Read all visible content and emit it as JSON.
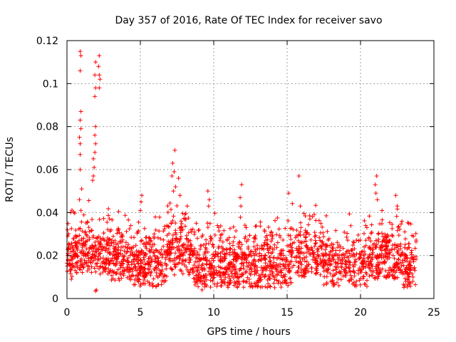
{
  "chart_data": {
    "type": "scatter",
    "title": "Day 357 of 2016, Rate Of TEC Index for receiver savo",
    "xlabel": "GPS time / hours",
    "ylabel": "ROTI / TECUs",
    "xlim": [
      0,
      25
    ],
    "ylim": [
      0,
      0.12
    ],
    "x_ticks": [
      0,
      5,
      10,
      15,
      20,
      25
    ],
    "x_tick_labels": [
      "0",
      "5",
      "10",
      "15",
      "20",
      "25"
    ],
    "y_ticks": [
      0,
      0.02,
      0.04,
      0.06,
      0.08,
      0.1,
      0.12
    ],
    "y_tick_labels": [
      "0",
      "0.02",
      "0.04",
      "0.06",
      "0.08",
      "0.1",
      "0.12"
    ],
    "grid": true,
    "marker": "+",
    "color": "#ff0000",
    "series": [
      {
        "name": "ROTI",
        "note": "dense point cloud; bulk of points 0.005-0.035 TECU/s across 0-24 h, representative peak points listed",
        "points": [
          [
            0.9,
            0.115
          ],
          [
            0.95,
            0.113
          ],
          [
            0.9,
            0.106
          ],
          [
            2.2,
            0.113
          ],
          [
            2.15,
            0.108
          ],
          [
            2.2,
            0.104
          ],
          [
            2.25,
            0.102
          ],
          [
            2.2,
            0.098
          ],
          [
            1.95,
            0.11
          ],
          [
            1.9,
            0.104
          ],
          [
            1.95,
            0.098
          ],
          [
            1.9,
            0.094
          ],
          [
            0.95,
            0.087
          ],
          [
            0.9,
            0.083
          ],
          [
            0.95,
            0.079
          ],
          [
            0.85,
            0.075
          ],
          [
            0.9,
            0.072
          ],
          [
            0.9,
            0.067
          ],
          [
            1.95,
            0.08
          ],
          [
            1.9,
            0.076
          ],
          [
            1.95,
            0.072
          ],
          [
            1.9,
            0.068
          ],
          [
            1.8,
            0.065
          ],
          [
            1.85,
            0.061
          ],
          [
            1.8,
            0.057
          ],
          [
            1.75,
            0.055
          ],
          [
            0.9,
            0.06
          ],
          [
            1.0,
            0.051
          ],
          [
            0.85,
            0.046
          ],
          [
            0.95,
            0.041
          ],
          [
            7.35,
            0.069
          ],
          [
            7.2,
            0.063
          ],
          [
            7.3,
            0.059
          ],
          [
            7.15,
            0.057
          ],
          [
            7.4,
            0.052
          ],
          [
            7.25,
            0.05
          ],
          [
            7.6,
            0.056
          ],
          [
            7.7,
            0.048
          ],
          [
            8.2,
            0.043
          ],
          [
            9.6,
            0.05
          ],
          [
            9.7,
            0.046
          ],
          [
            9.65,
            0.043
          ],
          [
            5.1,
            0.048
          ],
          [
            5.0,
            0.041
          ],
          [
            5.05,
            0.045
          ],
          [
            11.9,
            0.053
          ],
          [
            11.8,
            0.047
          ],
          [
            11.85,
            0.043
          ],
          [
            15.1,
            0.049
          ],
          [
            15.8,
            0.057
          ],
          [
            15.9,
            0.043
          ],
          [
            21.1,
            0.057
          ],
          [
            21.0,
            0.053
          ],
          [
            21.05,
            0.049
          ],
          [
            21.15,
            0.046
          ],
          [
            22.4,
            0.048
          ],
          [
            22.5,
            0.043
          ],
          [
            2.0,
            0.004
          ],
          [
            1.95,
            0.0035
          ],
          [
            0.3,
            0.009
          ],
          [
            9.2,
            0.004
          ],
          [
            23.0,
            0.006
          ]
        ]
      }
    ]
  }
}
